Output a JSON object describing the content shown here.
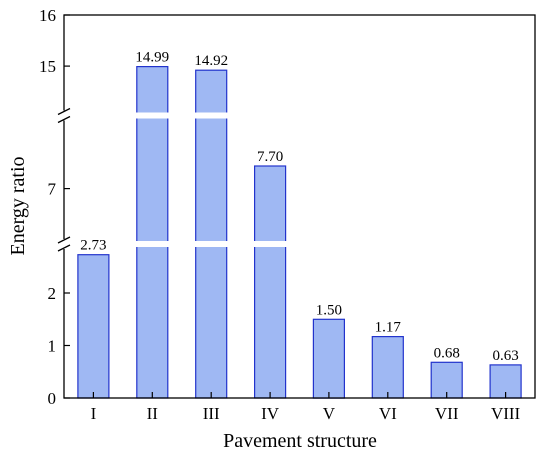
{
  "chart_data": {
    "type": "bar",
    "title": "",
    "xlabel": "Pavement structure",
    "ylabel": "Energy ratio",
    "categories": [
      "I",
      "II",
      "III",
      "IV",
      "V",
      "VI",
      "VII",
      "VIII"
    ],
    "values": [
      2.73,
      14.99,
      14.92,
      7.7,
      1.5,
      1.17,
      0.68,
      0.63
    ],
    "data_labels": [
      "2.73",
      "14.99",
      "14.92",
      "7.70",
      "1.50",
      "1.17",
      "0.68",
      "0.63"
    ],
    "ylim": [
      0,
      16
    ],
    "broken_axis": {
      "segments": [
        {
          "range": [
            0,
            2.8
          ]
        },
        {
          "range": [
            5.5,
            9
          ]
        },
        {
          "range": [
            14.2,
            16
          ]
        }
      ]
    },
    "y_ticks": [
      {
        "value": 0,
        "label": "0"
      },
      {
        "value": 1,
        "label": "1"
      },
      {
        "value": 2,
        "label": "2"
      },
      {
        "value": 7,
        "label": "7"
      },
      {
        "value": 15,
        "label": "15"
      },
      {
        "value": 16,
        "label": "16"
      }
    ],
    "grid": false,
    "bar_color": "#9fb8f3",
    "bar_edge_color": "#2233cc",
    "highlight_label_color": "#ff0000",
    "highlight_categories": [
      "II",
      "III"
    ]
  }
}
